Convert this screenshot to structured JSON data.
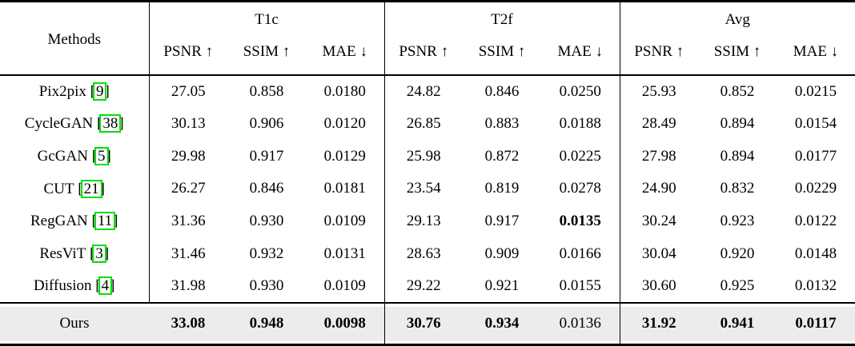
{
  "table": {
    "methods_header": "Methods",
    "groups": [
      {
        "label": "T1c"
      },
      {
        "label": "T2f"
      },
      {
        "label": "Avg"
      }
    ],
    "metrics": [
      "PSNR ↑",
      "SSIM ↑",
      "MAE ↓"
    ],
    "rows": [
      {
        "method": "Pix2pix",
        "cite": "9",
        "highlight": false,
        "values": [
          "27.05",
          "0.858",
          "0.0180",
          "24.82",
          "0.846",
          "0.0250",
          "25.93",
          "0.852",
          "0.0215"
        ],
        "bold": [
          0,
          0,
          0,
          0,
          0,
          0,
          0,
          0,
          0
        ]
      },
      {
        "method": "CycleGAN",
        "cite": "38",
        "highlight": false,
        "values": [
          "30.13",
          "0.906",
          "0.0120",
          "26.85",
          "0.883",
          "0.0188",
          "28.49",
          "0.894",
          "0.0154"
        ],
        "bold": [
          0,
          0,
          0,
          0,
          0,
          0,
          0,
          0,
          0
        ]
      },
      {
        "method": "GcGAN",
        "cite": "5",
        "highlight": false,
        "values": [
          "29.98",
          "0.917",
          "0.0129",
          "25.98",
          "0.872",
          "0.0225",
          "27.98",
          "0.894",
          "0.0177"
        ],
        "bold": [
          0,
          0,
          0,
          0,
          0,
          0,
          0,
          0,
          0
        ]
      },
      {
        "method": "CUT",
        "cite": "21",
        "highlight": false,
        "values": [
          "26.27",
          "0.846",
          "0.0181",
          "23.54",
          "0.819",
          "0.0278",
          "24.90",
          "0.832",
          "0.0229"
        ],
        "bold": [
          0,
          0,
          0,
          0,
          0,
          0,
          0,
          0,
          0
        ]
      },
      {
        "method": "RegGAN",
        "cite": "11",
        "highlight": false,
        "values": [
          "31.36",
          "0.930",
          "0.0109",
          "29.13",
          "0.917",
          "0.0135",
          "30.24",
          "0.923",
          "0.0122"
        ],
        "bold": [
          0,
          0,
          0,
          0,
          0,
          1,
          0,
          0,
          0
        ]
      },
      {
        "method": "ResViT",
        "cite": "3",
        "highlight": false,
        "values": [
          "31.46",
          "0.932",
          "0.0131",
          "28.63",
          "0.909",
          "0.0166",
          "30.04",
          "0.920",
          "0.0148"
        ],
        "bold": [
          0,
          0,
          0,
          0,
          0,
          0,
          0,
          0,
          0
        ]
      },
      {
        "method": "Diffusion",
        "cite": "4",
        "highlight": false,
        "values": [
          "31.98",
          "0.930",
          "0.0109",
          "29.22",
          "0.921",
          "0.0155",
          "30.60",
          "0.925",
          "0.0132"
        ],
        "bold": [
          0,
          0,
          0,
          0,
          0,
          0,
          0,
          0,
          0
        ]
      },
      {
        "method": "Ours",
        "cite": null,
        "highlight": true,
        "values": [
          "33.08",
          "0.948",
          "0.0098",
          "30.76",
          "0.934",
          "0.0136",
          "31.92",
          "0.941",
          "0.0117"
        ],
        "bold": [
          1,
          1,
          1,
          1,
          1,
          0,
          1,
          1,
          1
        ]
      }
    ],
    "colors": {
      "highlight_row_bg": "#ececec",
      "citation_box_green": "#00e000",
      "rule_color": "#000000"
    }
  }
}
